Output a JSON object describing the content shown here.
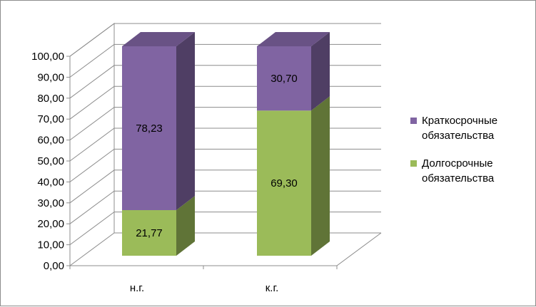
{
  "chart_data": {
    "type": "bar",
    "stacked": true,
    "style": "3d",
    "categories": [
      "н.г.",
      "к.г."
    ],
    "series": [
      {
        "name": "Долгосрочные обязательства",
        "values": [
          21.77,
          69.3
        ],
        "labels": [
          "21,77",
          "69,30"
        ],
        "color": "#9bbb59"
      },
      {
        "name": "Краткосрочные обязательства",
        "values": [
          78.23,
          30.7
        ],
        "labels": [
          "78,23",
          "30,70"
        ],
        "color": "#8064a2"
      }
    ],
    "ylim": [
      0,
      100
    ],
    "yticks": [
      "0,00",
      "10,00",
      "20,00",
      "30,00",
      "40,00",
      "50,00",
      "60,00",
      "70,00",
      "80,00",
      "90,00",
      "100,00"
    ],
    "grid": true,
    "legend_position": "right"
  },
  "legend": {
    "items": [
      {
        "label": "Краткосрочные обязательства",
        "color": "#8064a2"
      },
      {
        "label": "Долгосрочные обязательства",
        "color": "#9bbb59"
      }
    ]
  }
}
